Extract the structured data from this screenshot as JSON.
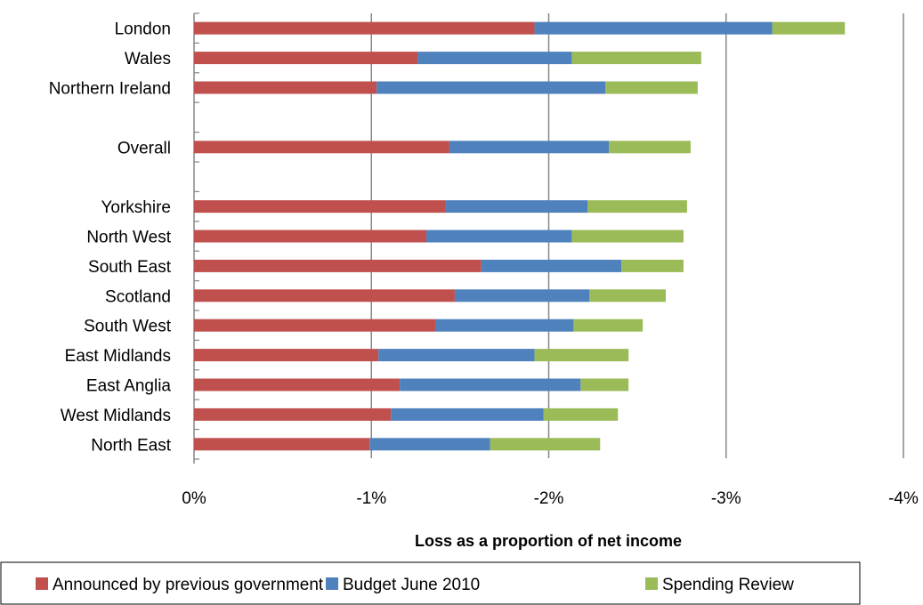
{
  "chart_data": {
    "type": "bar",
    "orientation": "horizontal",
    "stacked": true,
    "categories": [
      "London",
      "Wales",
      "Northern Ireland",
      "",
      "Overall",
      "",
      "Yorkshire",
      "North West",
      "South East",
      "Scotland",
      "South West",
      "East Midlands",
      "East Anglia",
      "West Midlands",
      "North East"
    ],
    "series": [
      {
        "name": "Announced by previous government",
        "color": "#c0504d",
        "values": [
          -1.92,
          -1.26,
          -1.03,
          null,
          -1.44,
          null,
          -1.42,
          -1.31,
          -1.62,
          -1.47,
          -1.36,
          -1.04,
          -1.16,
          -1.11,
          -0.99
        ]
      },
      {
        "name": "Budget June 2010",
        "color": "#4f81bd",
        "values": [
          -1.34,
          -0.87,
          -1.29,
          null,
          -0.9,
          null,
          -0.8,
          -0.82,
          -0.79,
          -0.76,
          -0.78,
          -0.88,
          -1.02,
          -0.86,
          -0.68
        ]
      },
      {
        "name": "Spending Review",
        "color": "#9bbb59",
        "values": [
          -0.41,
          -0.73,
          -0.52,
          null,
          -0.46,
          null,
          -0.56,
          -0.63,
          -0.35,
          -0.43,
          -0.39,
          -0.53,
          -0.27,
          -0.42,
          -0.62
        ]
      }
    ],
    "xlabel": "Loss as a proportion of net income",
    "ylabel": "",
    "xlim": [
      0,
      -4
    ],
    "x_ticks": [
      0,
      -1,
      -2,
      -3,
      -4
    ],
    "x_tick_labels": [
      "0%",
      "-1%",
      "-2%",
      "-3%",
      "-4%"
    ],
    "grid": "vertical major gridlines",
    "legend_position": "bottom"
  }
}
